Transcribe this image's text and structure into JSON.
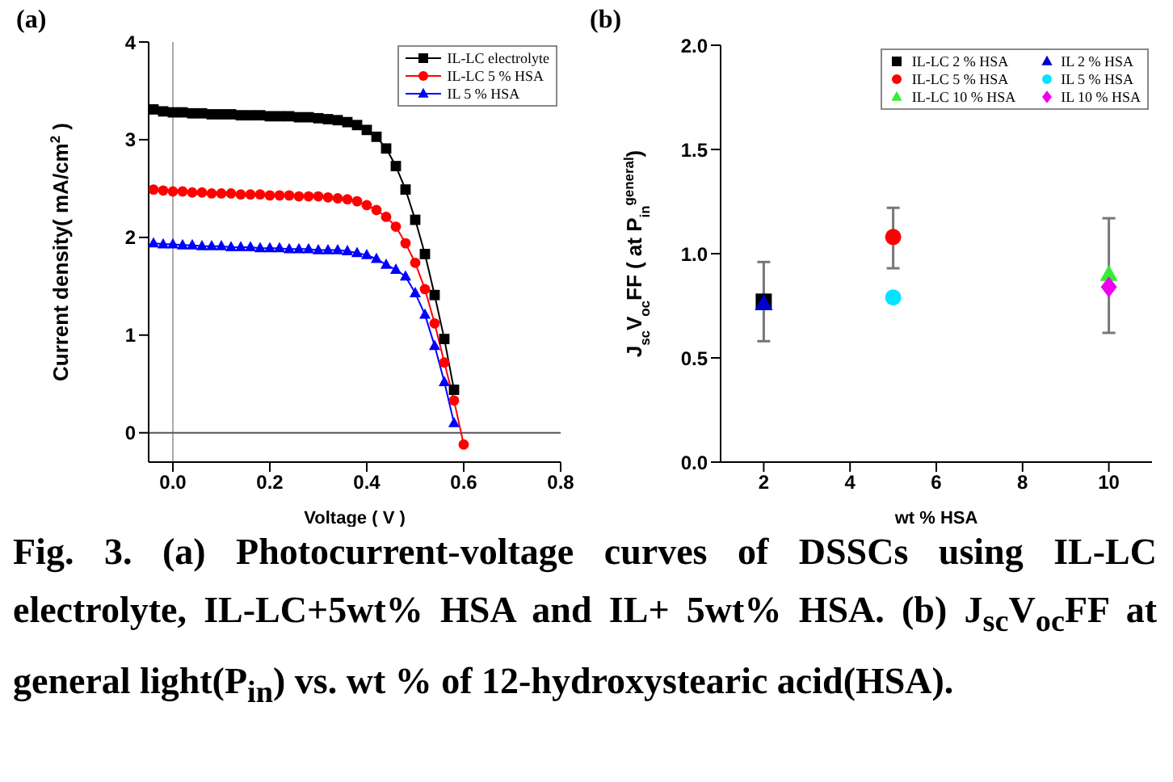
{
  "chart_data": [
    {
      "type": "line",
      "title": "(a)",
      "xlabel": "Voltage ( V )",
      "ylabel": "Current density( mA/cm$^{2}$ )",
      "x": [
        -0.04,
        -0.02,
        0,
        0.02,
        0.04,
        0.06,
        0.08,
        0.1,
        0.12,
        0.14,
        0.16,
        0.18,
        0.2,
        0.22,
        0.24,
        0.26,
        0.28,
        0.3,
        0.32,
        0.34,
        0.36,
        0.38,
        0.4,
        0.42,
        0.44,
        0.46,
        0.48,
        0.5,
        0.52,
        0.54,
        0.56,
        0.58,
        0.6
      ],
      "series": [
        {
          "name": "IL-LC electrolyte",
          "color": "#000000",
          "marker": "square",
          "values": [
            3.31,
            3.29,
            3.28,
            3.28,
            3.27,
            3.27,
            3.26,
            3.26,
            3.26,
            3.25,
            3.25,
            3.25,
            3.24,
            3.24,
            3.24,
            3.23,
            3.23,
            3.22,
            3.21,
            3.2,
            3.18,
            3.15,
            3.1,
            3.03,
            2.91,
            2.73,
            2.49,
            2.18,
            1.83,
            1.41,
            0.96,
            0.44,
            null
          ]
        },
        {
          "name": "IL-LC 5 % HSA",
          "color": "#ff0000",
          "marker": "circle",
          "values": [
            2.49,
            2.48,
            2.47,
            2.47,
            2.46,
            2.46,
            2.45,
            2.45,
            2.45,
            2.44,
            2.44,
            2.44,
            2.43,
            2.43,
            2.43,
            2.42,
            2.42,
            2.42,
            2.41,
            2.4,
            2.39,
            2.37,
            2.33,
            2.28,
            2.21,
            2.11,
            1.94,
            1.74,
            1.47,
            1.12,
            0.72,
            0.33,
            -0.12
          ]
        },
        {
          "name": "IL 5 % HSA",
          "color": "#0000ff",
          "marker": "triangle",
          "values": [
            1.94,
            1.93,
            1.93,
            1.92,
            1.92,
            1.91,
            1.91,
            1.91,
            1.9,
            1.9,
            1.9,
            1.89,
            1.89,
            1.89,
            1.88,
            1.88,
            1.88,
            1.87,
            1.87,
            1.87,
            1.86,
            1.84,
            1.82,
            1.78,
            1.72,
            1.67,
            1.6,
            1.43,
            1.21,
            0.89,
            0.52,
            0.1,
            null
          ]
        }
      ],
      "xlim": [
        -0.05,
        0.8
      ],
      "xticks": [
        {
          "value": 0,
          "label": "0.0"
        },
        {
          "value": 0.2,
          "label": "0.2"
        },
        {
          "value": 0.4,
          "label": "0.4"
        },
        {
          "value": 0.6,
          "label": "0.6"
        },
        {
          "value": 0.8,
          "label": "0.8"
        }
      ],
      "ylim": [
        -0.3,
        4
      ],
      "yticks": [
        0,
        1,
        2,
        3,
        4
      ],
      "ref_lines": [
        {
          "axis": "x",
          "value": 0,
          "color": "#aaaaaa"
        },
        {
          "axis": "y",
          "value": 0,
          "color": "#555555"
        }
      ],
      "legend": "top right",
      "grid": false,
      "line_style": "solid",
      "annotations": [
        "Fig.   3. (a) Photocurrent-voltage curves of DSSCs using IL-LC electrolyte, IL-LC+5wt% HSA and IL+ 5wt% HSA.   (b) J$_{sc}$V$_{oc}$FF at general light(P$_{in}$) vs. wt % of 12-hydroxystearic acid(HSA)."
      ]
    },
    {
      "type": "scatter",
      "title": "(b)",
      "xlabel": "wt % HSA",
      "ylabel": "J$_{sc}$V$_{oc}$FF ( at P$_{in}$$^{general}$)",
      "x": [
        2,
        5,
        10
      ],
      "series": [
        {
          "name": "IL-LC 2 % HSA",
          "color": "#000000",
          "marker": "square",
          "values": [
            0.77,
            null,
            null
          ],
          "errors": [
            [
              0.58,
              0.96
            ],
            null,
            null
          ]
        },
        {
          "name": "IL-LC 5 % HSA",
          "color": "#ff0000",
          "marker": "circle",
          "values": [
            null,
            1.08,
            null
          ],
          "errors": [
            null,
            [
              0.93,
              1.22
            ],
            null
          ]
        },
        {
          "name": "IL-LC 10 % HSA",
          "color": "#33ee33",
          "marker": "triangle",
          "values": [
            null,
            null,
            0.9
          ],
          "errors": [
            null,
            null,
            [
              0.62,
              1.17
            ]
          ]
        },
        {
          "name": "IL 2 % HSA",
          "color": "#0000cc",
          "marker": "triangle",
          "values": [
            0.76,
            null,
            null
          ]
        },
        {
          "name": "IL 5 % HSA",
          "color": "#00e5ff",
          "marker": "circle",
          "values": [
            null,
            0.79,
            null
          ]
        },
        {
          "name": "IL 10 % HSA",
          "color": "#ee00ee",
          "marker": "diamond",
          "values": [
            null,
            null,
            0.84
          ]
        }
      ],
      "xlim": [
        1,
        11
      ],
      "xticks": [
        2,
        4,
        6,
        8,
        10
      ],
      "ylim": [
        0,
        2
      ],
      "yticks": [
        {
          "value": 0,
          "label": "0.0"
        },
        {
          "value": 0.5,
          "label": "0.5"
        },
        {
          "value": 1,
          "label": "1.0"
        },
        {
          "value": 1.5,
          "label": "1.5"
        },
        {
          "value": 2,
          "label": "2.0"
        }
      ],
      "legend": "top right",
      "grid": false
    }
  ]
}
